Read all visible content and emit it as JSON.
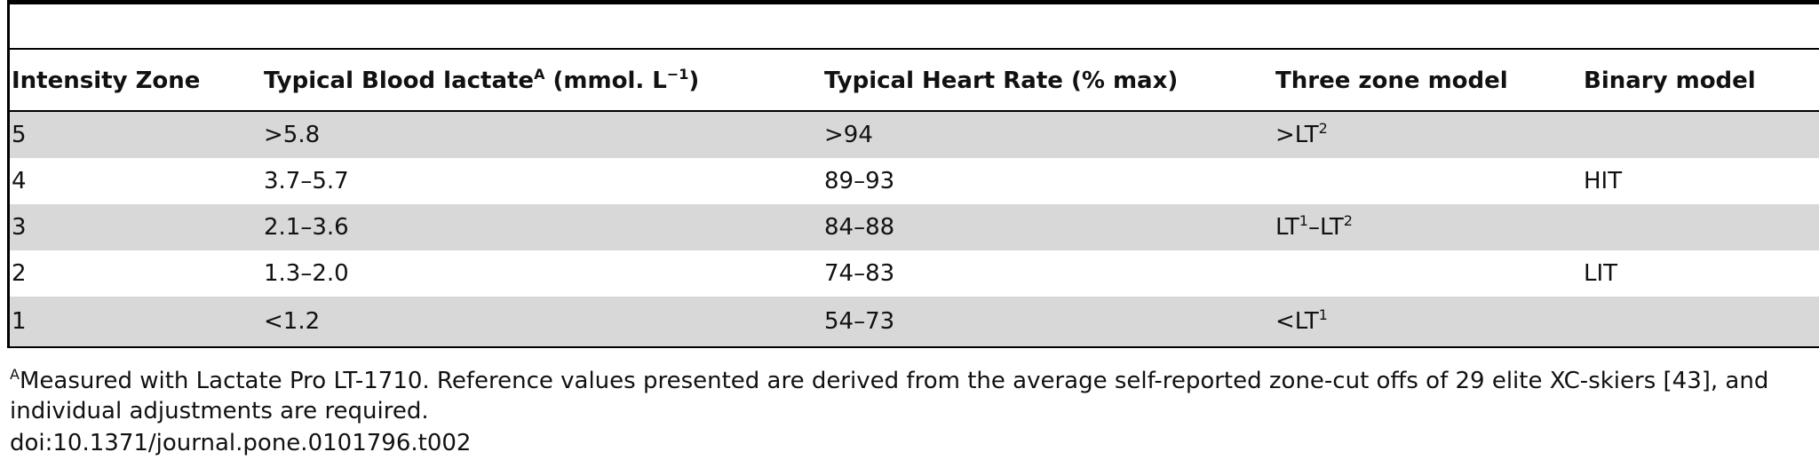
{
  "table": {
    "headers": [
      {
        "text": "Intensity Zone",
        "sup": ""
      },
      {
        "text": "Typical Blood lactate",
        "sup": "A",
        "tail": " (mmol. L",
        "tail_sup": "−1",
        "tail_end": ")"
      },
      {
        "text": "Typical Heart Rate (% max)"
      },
      {
        "text": "Three zone model"
      },
      {
        "text": "Binary model"
      }
    ],
    "rows": [
      {
        "zone": "5",
        "lactate": ">5.8",
        "hr": ">94",
        "three_zone": ">LT",
        "three_zone_sup": "2",
        "binary": ""
      },
      {
        "zone": "4",
        "lactate": "3.7–5.7",
        "hr": "89–93",
        "three_zone": "",
        "three_zone_sup": "",
        "binary": "HIT"
      },
      {
        "zone": "3",
        "lactate": "2.1–3.6",
        "hr": "84–88",
        "three_zone": "LT",
        "three_zone_sup": "1",
        "three_zone_mid": "–LT",
        "three_zone_sup2": "2",
        "binary": ""
      },
      {
        "zone": "2",
        "lactate": "1.3–2.0",
        "hr": "74–83",
        "three_zone": "",
        "three_zone_sup": "",
        "binary": "LIT"
      },
      {
        "zone": "1",
        "lactate": "<1.2",
        "hr": "54–73",
        "three_zone": "<LT",
        "three_zone_sup": "1",
        "binary": ""
      }
    ]
  },
  "footnote": {
    "marker": "A",
    "text": "Measured with Lactate Pro LT-1710. Reference values presented are derived from the average self-reported zone-cut offs of 29 elite XC-skiers [43], and individual adjustments are required.",
    "doi": "doi:10.1371/journal.pone.0101796.t002"
  }
}
